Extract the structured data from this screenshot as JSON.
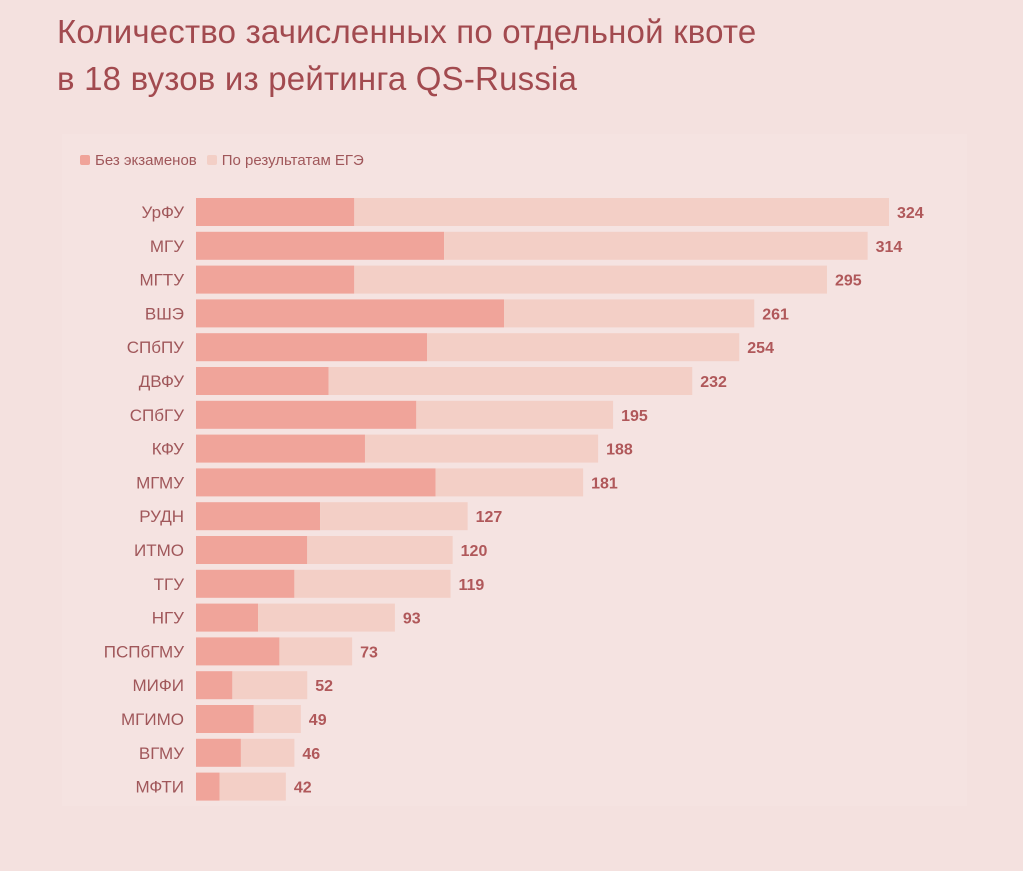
{
  "title": {
    "line1": "Количество зачисленных по отдельной квоте",
    "line2": "в 18 вузов из рейтинга QS-Russia"
  },
  "colors": {
    "background": "#f4e1df",
    "title": "#a24a4f",
    "label": "#a0575a",
    "value": "#b0585a",
    "no_exams": "#f0a49a",
    "by_ege": "#f3cfc6"
  },
  "chart_data": {
    "type": "bar",
    "orientation": "horizontal",
    "stacked": true,
    "legend_position": "top-left",
    "grid": false,
    "categories": [
      "УрФУ",
      "МГУ",
      "МГТУ",
      "ВШЭ",
      "СПбПУ",
      "ДВФУ",
      "СПбГУ",
      "КФУ",
      "МГМУ",
      "РУДН",
      "ИТМО",
      "ТГУ",
      "НГУ",
      "ПСПбГМУ",
      "МИФИ",
      "МГИМО",
      "ВГМУ",
      "МФТИ"
    ],
    "series": [
      {
        "name": "Без экзаменов",
        "values": [
          74,
          116,
          74,
          144,
          108,
          62,
          103,
          79,
          112,
          58,
          52,
          46,
          29,
          39,
          17,
          27,
          21,
          11
        ]
      },
      {
        "name": "По результатам ЕГЭ",
        "values": [
          250,
          198,
          221,
          117,
          146,
          170,
          92,
          109,
          69,
          69,
          68,
          73,
          64,
          34,
          35,
          22,
          25,
          31
        ]
      }
    ],
    "totals": [
      324,
      314,
      295,
      261,
      254,
      232,
      195,
      188,
      181,
      127,
      120,
      119,
      93,
      73,
      52,
      49,
      46,
      42
    ],
    "xlim": [
      0,
      324
    ]
  }
}
